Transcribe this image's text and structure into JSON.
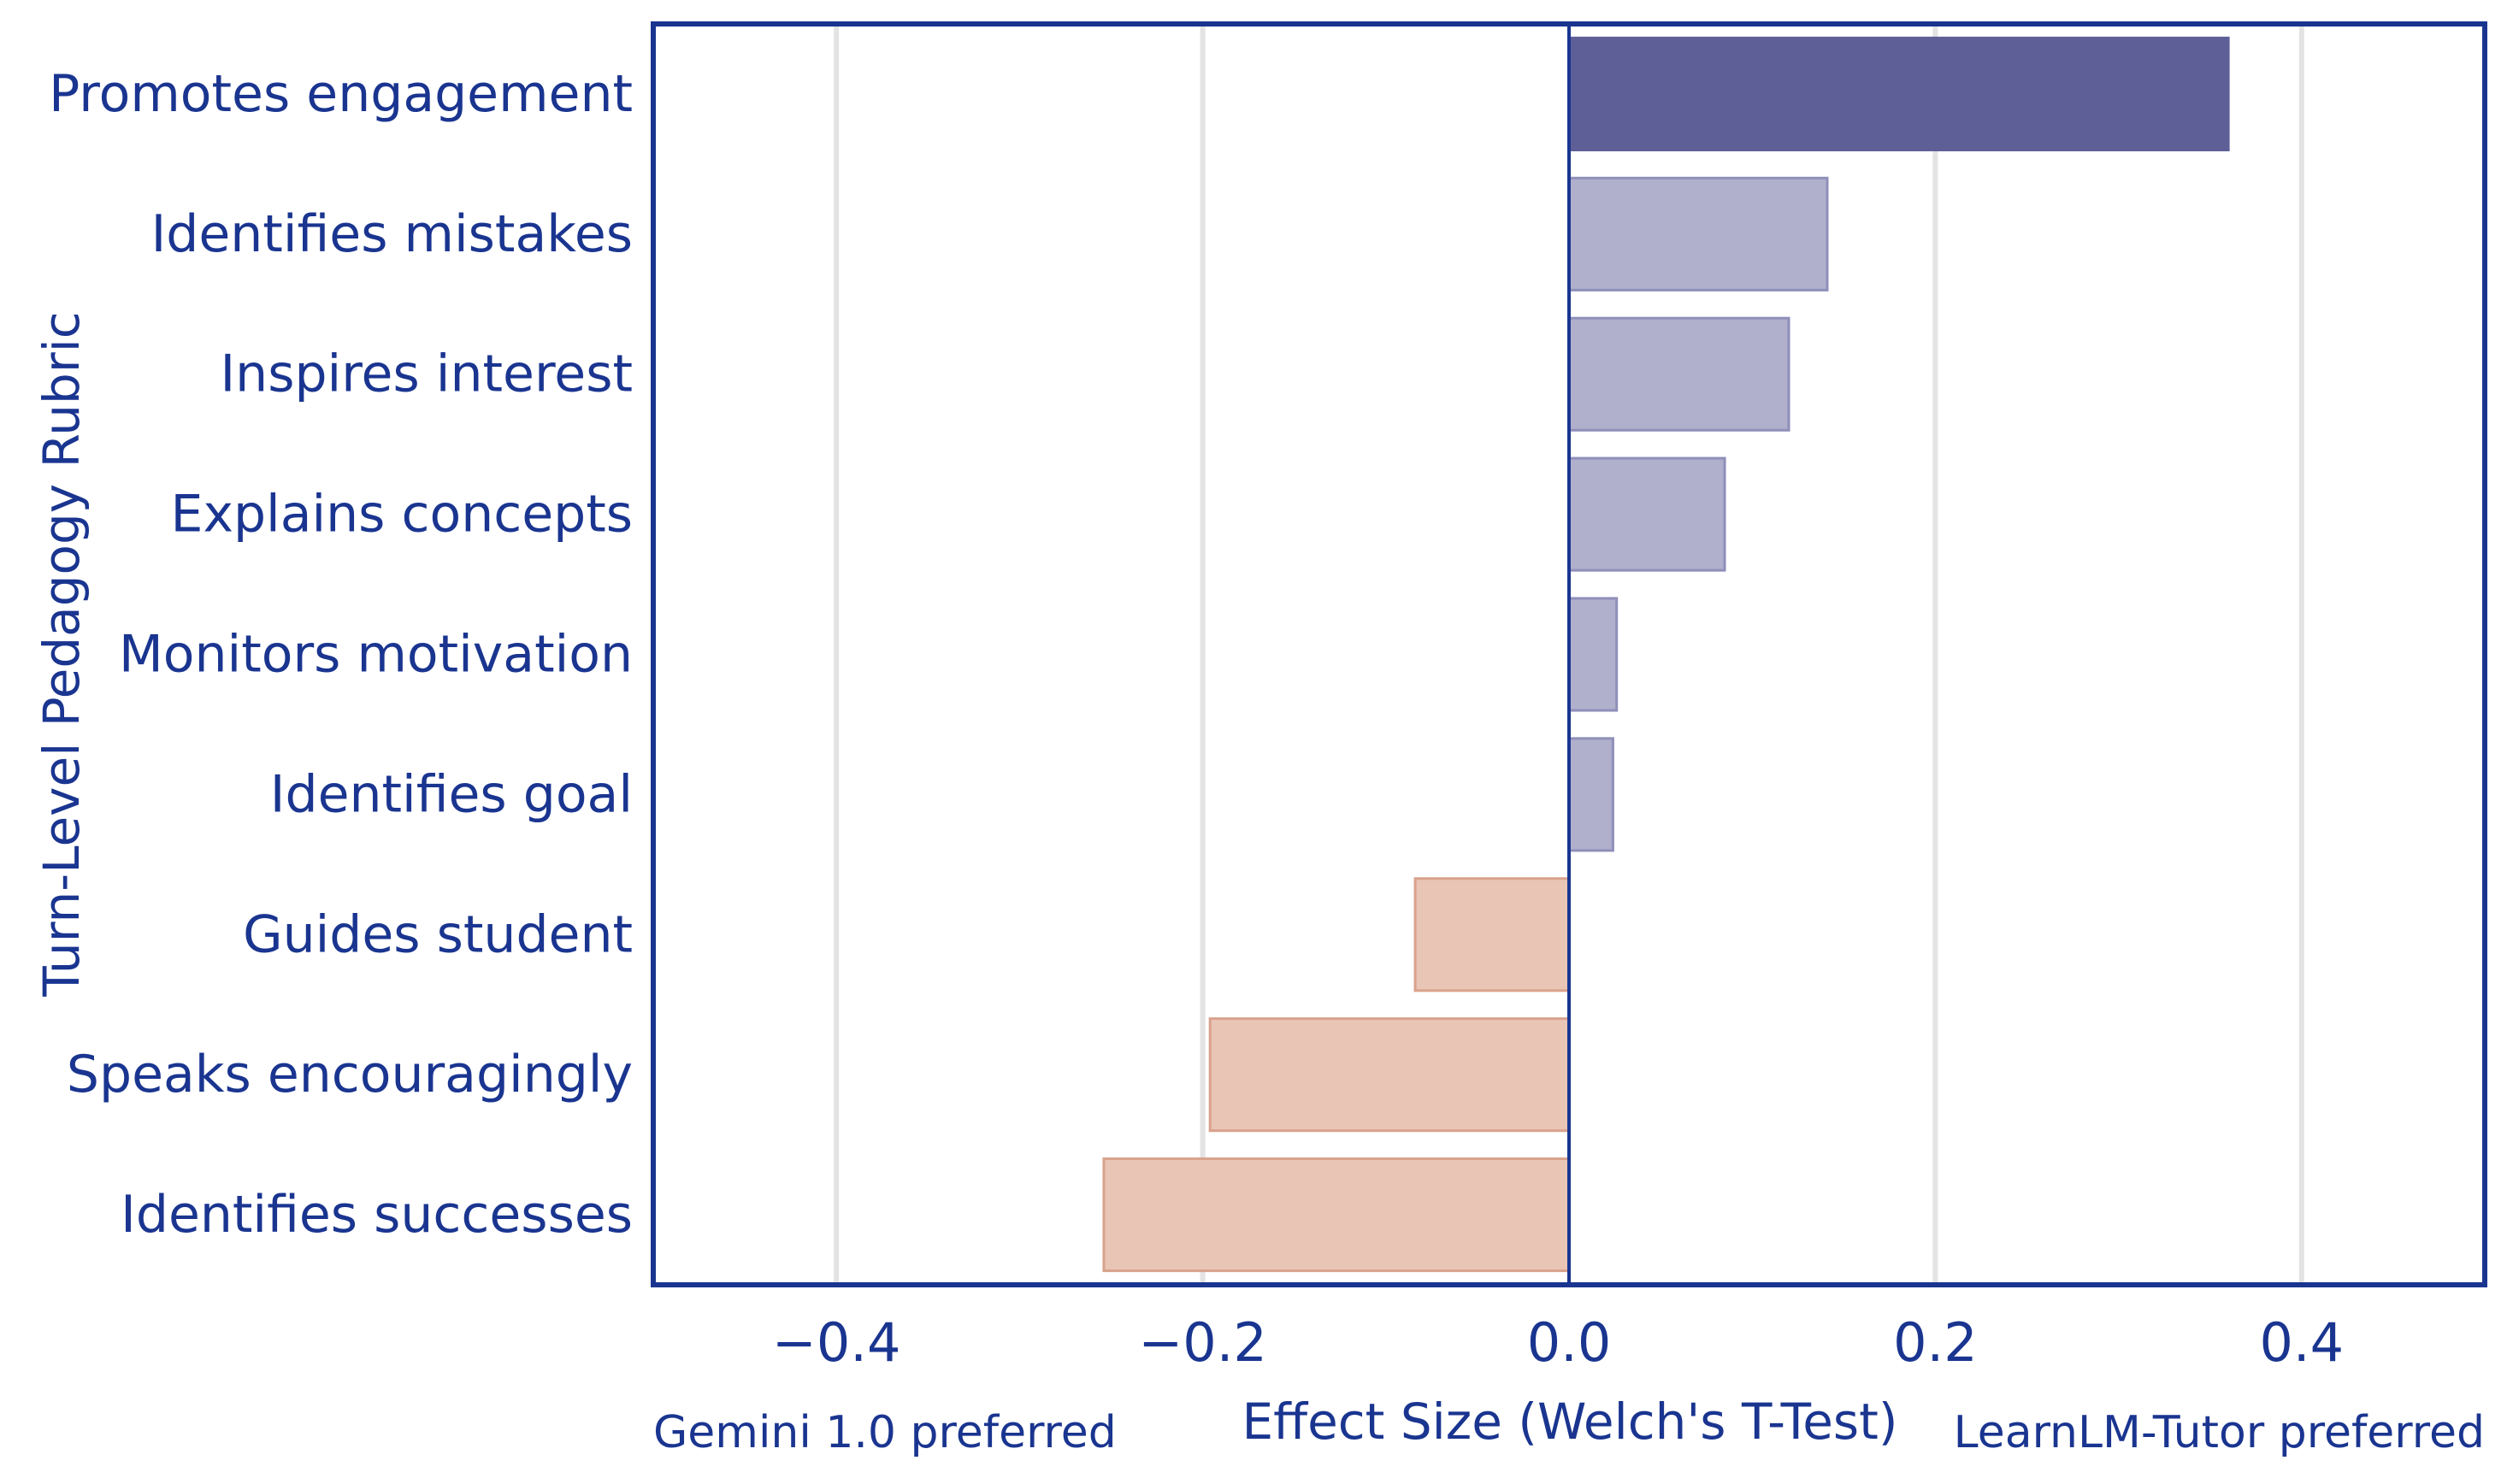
{
  "colors": {
    "axis": "#1a3590",
    "text": "#1a3590",
    "grid": "#e3e3e3",
    "highlight_bar": "#5f5f98",
    "positive_bar": "#b0b0cc",
    "positive_edge": "#8f8fba",
    "negative_bar": "#e9c5b6",
    "negative_edge": "#d9a28c"
  },
  "chart_data": {
    "type": "bar",
    "orientation": "horizontal",
    "title": "",
    "xlabel": "Effect Size (Welch's T-Test)",
    "ylabel": "Turn-Level Pedagogy Rubric",
    "left_annotation": "Gemini 1.0 preferred",
    "right_annotation": "LearnLM-Tutor preferred",
    "xlim": [
      -0.5,
      0.5
    ],
    "xticks": [
      -0.4,
      -0.2,
      0.0,
      0.2,
      0.4
    ],
    "xtick_labels": [
      "−0.4",
      "−0.2",
      "0.0",
      "0.2",
      "0.4"
    ],
    "grid": true,
    "categories": [
      "Promotes engagement",
      "Identifies mistakes",
      "Inspires interest",
      "Explains concepts",
      "Monitors motivation",
      "Identifies goal",
      "Guides student",
      "Speaks encouragingly",
      "Identifies successes"
    ],
    "values": [
      0.36,
      0.141,
      0.12,
      0.085,
      0.026,
      0.024,
      -0.084,
      -0.196,
      -0.254
    ],
    "highlighted": [
      "Promotes engagement"
    ]
  }
}
